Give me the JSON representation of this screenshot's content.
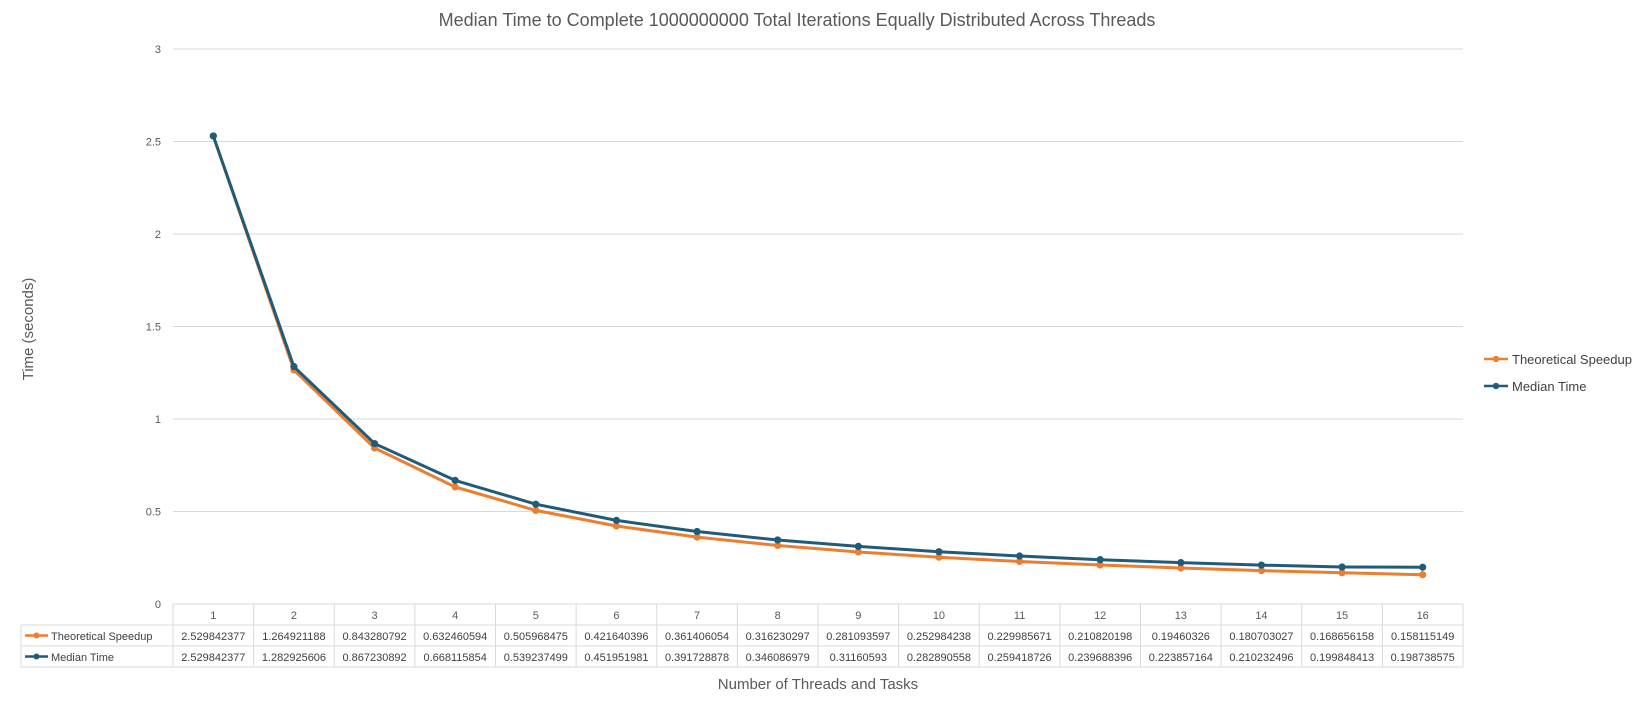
{
  "chart_data": {
    "type": "line",
    "title": "Median Time to Complete 1000000000 Total Iterations Equally Distributed Across Threads",
    "xlabel": "Number of Threads and Tasks",
    "ylabel": "Time (seconds)",
    "categories": [
      "1",
      "2",
      "3",
      "4",
      "5",
      "6",
      "7",
      "8",
      "9",
      "10",
      "11",
      "12",
      "13",
      "14",
      "15",
      "16"
    ],
    "ylim": [
      0,
      3
    ],
    "yticks": [
      "0",
      "0.5",
      "1",
      "1.5",
      "2",
      "2.5",
      "3"
    ],
    "grid": true,
    "legend_position": "right",
    "data_table": true,
    "series": [
      {
        "name": "Theoretical Speedup",
        "color": "#ED7D31",
        "values": [
          2.529842377,
          1.264921188,
          0.843280792,
          0.632460594,
          0.505968475,
          0.421640396,
          0.361406054,
          0.316230297,
          0.281093597,
          0.252984238,
          0.229985671,
          0.210820198,
          0.19460326,
          0.180703027,
          0.168656158,
          0.158115149
        ],
        "labels": [
          "2.529842377",
          "1.264921188",
          "0.843280792",
          "0.632460594",
          "0.505968475",
          "0.421640396",
          "0.361406054",
          "0.316230297",
          "0.281093597",
          "0.252984238",
          "0.229985671",
          "0.210820198",
          "0.19460326",
          "0.180703027",
          "0.168656158",
          "0.158115149"
        ]
      },
      {
        "name": "Median Time",
        "color": "#1F5C7A",
        "values": [
          2.529842377,
          1.282925606,
          0.867230892,
          0.668115854,
          0.539237499,
          0.451951981,
          0.391728878,
          0.346086979,
          0.31160593,
          0.282890558,
          0.259418726,
          0.239688396,
          0.223857164,
          0.210232496,
          0.199848413,
          0.198738575
        ],
        "labels": [
          "2.529842377",
          "1.282925606",
          "0.867230892",
          "0.668115854",
          "0.539237499",
          "0.451951981",
          "0.391728878",
          "0.346086979",
          "0.31160593",
          "0.282890558",
          "0.259418726",
          "0.239688396",
          "0.223857164",
          "0.210232496",
          "0.199848413",
          "0.198738575"
        ]
      }
    ]
  }
}
